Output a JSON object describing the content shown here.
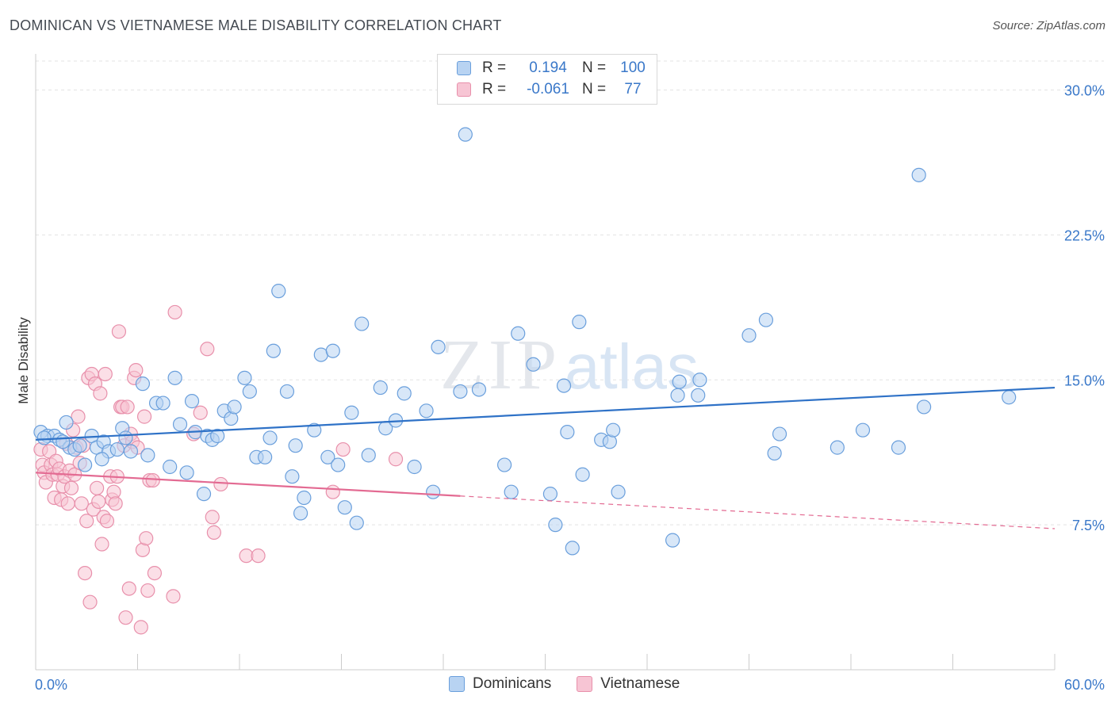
{
  "header": {
    "title": "DOMINICAN VS VIETNAMESE MALE DISABILITY CORRELATION CHART",
    "source": "Source: ZipAtlas.com"
  },
  "watermark": {
    "part1": "ZIP",
    "part2": "atlas"
  },
  "colors": {
    "dominicans_fill": "#b8d3f2",
    "dominicans_stroke": "#6a9fdc",
    "dominicans_line": "#2f72c7",
    "vietnamese_fill": "#f7c5d4",
    "vietnamese_stroke": "#e890ab",
    "vietnamese_line": "#e36a92",
    "tick_label": "#3a78c9",
    "grid": "#e3e3e3"
  },
  "legend": {
    "rows": [
      {
        "r_label": "R =",
        "r_value": "0.194",
        "n_label": "N =",
        "n_value": "100"
      },
      {
        "r_label": "R =",
        "r_value": "-0.061",
        "n_label": "N =",
        "n_value": "77"
      }
    ]
  },
  "bottom_legend": {
    "items": [
      "Dominicans",
      "Vietnamese"
    ]
  },
  "chart_data": {
    "type": "scatter",
    "title": "DOMINICAN VS VIETNAMESE MALE DISABILITY CORRELATION CHART",
    "xlabel": "",
    "ylabel": "Male Disability",
    "xlim": [
      0,
      60
    ],
    "ylim": [
      0,
      31.5
    ],
    "x_tick_labels": [
      "0.0%",
      "60.0%"
    ],
    "y_ticks": [
      7.5,
      15.0,
      22.5,
      30.0
    ],
    "y_tick_labels": [
      "7.5%",
      "15.0%",
      "22.5%",
      "30.0%"
    ],
    "grid": "horizontal dashed",
    "legend_position": "top-center",
    "series": [
      {
        "name": "Dominicans",
        "r": 0.194,
        "n": 100,
        "trend": {
          "x": [
            0,
            60
          ],
          "y": [
            11.9,
            14.6
          ],
          "solid_to": 60
        },
        "points": [
          [
            0.3,
            12.3
          ],
          [
            0.7,
            12.1
          ],
          [
            1.1,
            12.1
          ],
          [
            1.4,
            11.9
          ],
          [
            1.8,
            12.8
          ],
          [
            2.0,
            11.5
          ],
          [
            2.3,
            11.4
          ],
          [
            2.9,
            10.6
          ],
          [
            3.3,
            12.1
          ],
          [
            3.6,
            11.5
          ],
          [
            4.0,
            11.8
          ],
          [
            4.3,
            11.3
          ],
          [
            4.8,
            11.4
          ],
          [
            5.1,
            12.5
          ],
          [
            5.3,
            12.0
          ],
          [
            5.6,
            11.3
          ],
          [
            6.3,
            14.8
          ],
          [
            6.6,
            11.1
          ],
          [
            7.1,
            13.8
          ],
          [
            7.5,
            13.8
          ],
          [
            7.9,
            10.5
          ],
          [
            8.2,
            15.1
          ],
          [
            8.5,
            12.7
          ],
          [
            8.9,
            10.2
          ],
          [
            9.2,
            13.9
          ],
          [
            9.4,
            12.3
          ],
          [
            9.9,
            9.1
          ],
          [
            10.1,
            12.1
          ],
          [
            10.4,
            11.9
          ],
          [
            10.7,
            12.1
          ],
          [
            11.1,
            13.4
          ],
          [
            11.5,
            13.0
          ],
          [
            11.7,
            13.6
          ],
          [
            12.3,
            15.1
          ],
          [
            12.6,
            14.4
          ],
          [
            13.0,
            11.0
          ],
          [
            13.5,
            11.0
          ],
          [
            13.8,
            12.0
          ],
          [
            14.0,
            16.5
          ],
          [
            14.3,
            19.6
          ],
          [
            14.8,
            14.4
          ],
          [
            15.1,
            10.0
          ],
          [
            15.3,
            11.6
          ],
          [
            15.6,
            8.1
          ],
          [
            15.8,
            8.9
          ],
          [
            16.4,
            12.4
          ],
          [
            16.8,
            16.3
          ],
          [
            17.2,
            11.0
          ],
          [
            17.5,
            16.5
          ],
          [
            17.8,
            10.6
          ],
          [
            18.2,
            8.4
          ],
          [
            18.6,
            13.3
          ],
          [
            18.9,
            7.6
          ],
          [
            19.2,
            17.9
          ],
          [
            19.6,
            11.1
          ],
          [
            20.3,
            14.6
          ],
          [
            20.6,
            12.5
          ],
          [
            21.2,
            12.9
          ],
          [
            21.7,
            14.3
          ],
          [
            22.3,
            10.5
          ],
          [
            23.0,
            13.4
          ],
          [
            23.4,
            9.2
          ],
          [
            23.7,
            16.7
          ],
          [
            25.0,
            14.4
          ],
          [
            26.1,
            14.5
          ],
          [
            25.3,
            27.7
          ],
          [
            27.6,
            10.6
          ],
          [
            28.0,
            9.2
          ],
          [
            28.4,
            17.4
          ],
          [
            29.3,
            15.8
          ],
          [
            30.3,
            9.1
          ],
          [
            30.6,
            7.5
          ],
          [
            31.1,
            14.7
          ],
          [
            31.3,
            12.3
          ],
          [
            31.6,
            6.3
          ],
          [
            32.0,
            18.0
          ],
          [
            32.2,
            10.1
          ],
          [
            33.3,
            11.9
          ],
          [
            33.8,
            11.8
          ],
          [
            34.0,
            12.4
          ],
          [
            34.3,
            9.2
          ],
          [
            37.5,
            6.7
          ],
          [
            37.8,
            14.2
          ],
          [
            37.9,
            14.9
          ],
          [
            39.0,
            14.2
          ],
          [
            39.1,
            15.0
          ],
          [
            42.0,
            17.3
          ],
          [
            43.0,
            18.1
          ],
          [
            43.5,
            11.2
          ],
          [
            43.8,
            12.2
          ],
          [
            47.2,
            11.5
          ],
          [
            48.7,
            12.4
          ],
          [
            50.8,
            11.5
          ],
          [
            52.0,
            25.6
          ],
          [
            52.3,
            13.6
          ],
          [
            57.3,
            14.1
          ],
          [
            0.5,
            12.0
          ],
          [
            1.6,
            11.8
          ],
          [
            2.6,
            11.6
          ],
          [
            3.9,
            10.9
          ]
        ]
      },
      {
        "name": "Vietnamese",
        "r": -0.061,
        "n": 77,
        "trend": {
          "x": [
            0,
            60
          ],
          "y": [
            10.2,
            7.3
          ],
          "solid_to": 25
        },
        "points": [
          [
            0.3,
            11.4
          ],
          [
            0.4,
            10.6
          ],
          [
            0.5,
            10.2
          ],
          [
            0.6,
            9.7
          ],
          [
            0.8,
            11.3
          ],
          [
            0.9,
            10.6
          ],
          [
            1.0,
            10.1
          ],
          [
            1.1,
            8.9
          ],
          [
            1.2,
            10.8
          ],
          [
            1.3,
            10.1
          ],
          [
            1.4,
            10.4
          ],
          [
            1.5,
            8.8
          ],
          [
            1.6,
            9.5
          ],
          [
            1.7,
            10.0
          ],
          [
            1.8,
            11.7
          ],
          [
            1.9,
            8.6
          ],
          [
            2.0,
            10.3
          ],
          [
            2.1,
            9.4
          ],
          [
            2.2,
            12.4
          ],
          [
            2.3,
            10.1
          ],
          [
            2.4,
            11.5
          ],
          [
            2.5,
            13.1
          ],
          [
            2.6,
            10.7
          ],
          [
            2.7,
            8.6
          ],
          [
            2.8,
            11.6
          ],
          [
            2.9,
            5.0
          ],
          [
            3.0,
            7.7
          ],
          [
            3.1,
            15.1
          ],
          [
            3.2,
            3.5
          ],
          [
            3.3,
            15.3
          ],
          [
            3.4,
            8.3
          ],
          [
            3.5,
            14.8
          ],
          [
            3.6,
            9.4
          ],
          [
            3.7,
            8.7
          ],
          [
            3.8,
            14.3
          ],
          [
            3.9,
            6.5
          ],
          [
            4.0,
            7.9
          ],
          [
            4.1,
            15.3
          ],
          [
            4.2,
            7.7
          ],
          [
            4.4,
            10.0
          ],
          [
            4.5,
            8.8
          ],
          [
            4.6,
            9.2
          ],
          [
            4.7,
            8.6
          ],
          [
            4.8,
            10.0
          ],
          [
            4.9,
            17.5
          ],
          [
            5.0,
            13.6
          ],
          [
            5.1,
            13.6
          ],
          [
            5.2,
            11.6
          ],
          [
            5.3,
            2.7
          ],
          [
            5.4,
            13.6
          ],
          [
            5.5,
            4.2
          ],
          [
            5.6,
            12.2
          ],
          [
            5.7,
            11.8
          ],
          [
            5.8,
            15.1
          ],
          [
            5.9,
            15.5
          ],
          [
            6.0,
            11.5
          ],
          [
            6.2,
            2.2
          ],
          [
            6.3,
            6.2
          ],
          [
            6.4,
            13.1
          ],
          [
            6.5,
            6.8
          ],
          [
            6.6,
            4.1
          ],
          [
            6.7,
            9.8
          ],
          [
            6.9,
            9.8
          ],
          [
            7.0,
            5.0
          ],
          [
            8.1,
            3.8
          ],
          [
            8.2,
            18.5
          ],
          [
            9.3,
            12.2
          ],
          [
            9.7,
            13.3
          ],
          [
            10.1,
            16.6
          ],
          [
            10.4,
            7.9
          ],
          [
            10.5,
            7.1
          ],
          [
            10.9,
            9.6
          ],
          [
            12.4,
            5.9
          ],
          [
            13.1,
            5.9
          ],
          [
            17.5,
            9.2
          ],
          [
            18.1,
            11.4
          ],
          [
            21.2,
            10.9
          ]
        ]
      }
    ]
  }
}
